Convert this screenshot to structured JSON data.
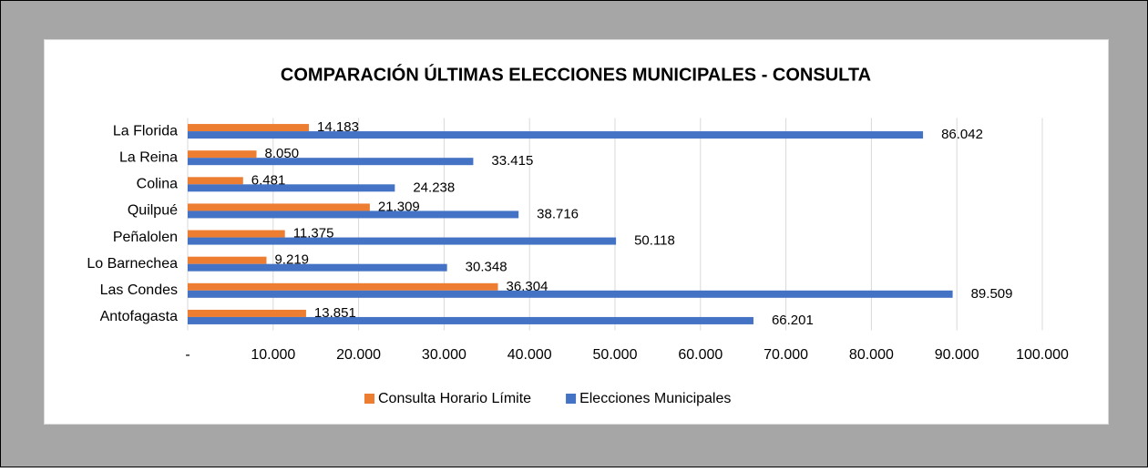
{
  "chart_data": {
    "type": "bar",
    "orientation": "horizontal",
    "title": "COMPARACIÓN ÚLTIMAS ELECCIONES MUNICIPALES - CONSULTA",
    "categories": [
      "La Florida",
      "La Reina",
      "Colina",
      "Quilpué",
      "Peñalolen",
      "Lo Barnechea",
      "Las Condes",
      "Antofagasta"
    ],
    "series": [
      {
        "name": "Consulta Horario Límite",
        "color": "#ed7d31",
        "values": [
          14183,
          8050,
          6481,
          21309,
          11375,
          9219,
          36304,
          13851
        ],
        "value_labels": [
          "14.183",
          "8.050",
          "6.481",
          "21.309",
          "11.375",
          "9.219",
          "36.304",
          "13.851"
        ]
      },
      {
        "name": "Elecciones Municipales",
        "color": "#4472c4",
        "values": [
          86042,
          33415,
          24238,
          38716,
          50118,
          30348,
          89509,
          66201
        ],
        "value_labels": [
          "86.042",
          "33.415",
          "24.238",
          "38.716",
          "50.118",
          "30.348",
          "89.509",
          "66.201"
        ]
      }
    ],
    "xlim": [
      0,
      100000
    ],
    "xticks": [
      {
        "value": 0,
        "label": "-"
      },
      {
        "value": 10000,
        "label": "10.000"
      },
      {
        "value": 20000,
        "label": "20.000"
      },
      {
        "value": 30000,
        "label": "30.000"
      },
      {
        "value": 40000,
        "label": "40.000"
      },
      {
        "value": 50000,
        "label": "50.000"
      },
      {
        "value": 60000,
        "label": "60.000"
      },
      {
        "value": 70000,
        "label": "70.000"
      },
      {
        "value": 80000,
        "label": "80.000"
      },
      {
        "value": 90000,
        "label": "90.000"
      },
      {
        "value": 100000,
        "label": "100.000"
      }
    ],
    "grid": true,
    "legend": "bottom"
  }
}
